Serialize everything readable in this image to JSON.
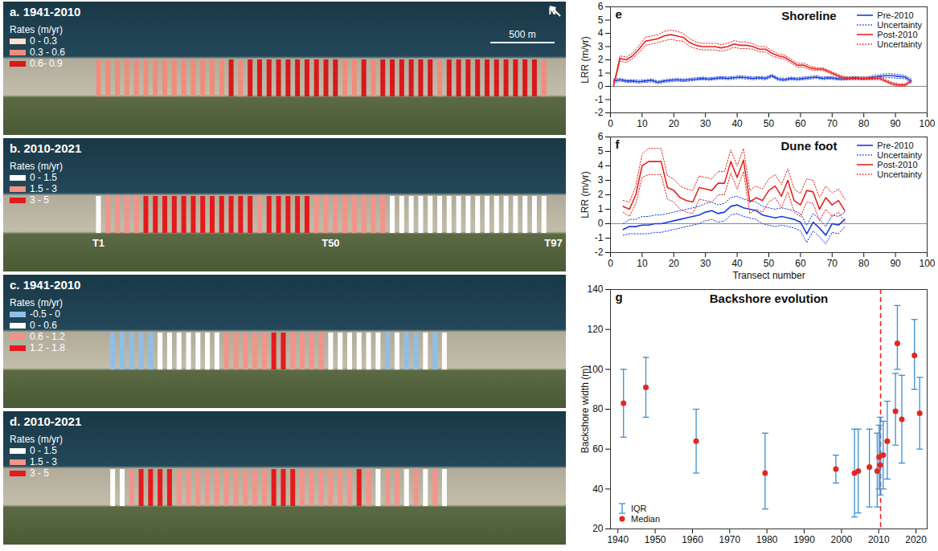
{
  "chart_data": [
    {
      "type": "transect_map",
      "title": "a. 1941-2010",
      "source_chart": "Shoreline",
      "source_series": "Pre-2010",
      "legend": "left",
      "legend_title": "Rates (m/yr)",
      "classes": [
        {
          "min": 0,
          "max": 0.3,
          "label": "0 - 0.3",
          "color": "#fbe3cf"
        },
        {
          "min": 0.3,
          "max": 0.6,
          "label": "0.3 - 0.6",
          "color": "#f08c7c"
        },
        {
          "min": 0.6,
          "max": 0.9,
          "label": "0.6- 0.9",
          "color": "#d7191c"
        }
      ],
      "north_label": "N",
      "scale_label": "500 m"
    },
    {
      "type": "transect_map",
      "title": "b. 2010-2021",
      "source_chart": "Shoreline",
      "source_series": "Post-2010",
      "legend": "left",
      "legend_title": "Rates (m/yr)",
      "classes": [
        {
          "min": 0,
          "max": 1.5,
          "label": "0 - 1.5",
          "color": "#ffffff"
        },
        {
          "min": 1.5,
          "max": 3,
          "label": "1.5 - 3",
          "color": "#f4938a"
        },
        {
          "min": 3,
          "max": 5,
          "label": "3 - 5",
          "color": "#e41a1c"
        }
      ],
      "annotations": [
        {
          "text": "T1",
          "x": 1
        },
        {
          "text": "T50",
          "x": 50
        },
        {
          "text": "T97",
          "x": 97
        }
      ]
    },
    {
      "type": "transect_map",
      "title": "c. 1941-2010",
      "source_chart": "Dune foot",
      "source_series": "Pre-2010",
      "legend": "left",
      "legend_title": "Rates (m/yr)",
      "classes": [
        {
          "min": -0.5,
          "max": 0,
          "label": "-0.5 - 0",
          "color": "#8fbfe8"
        },
        {
          "min": 0,
          "max": 0.6,
          "label": "0 - 0.6",
          "color": "#ffffff"
        },
        {
          "min": 0.6,
          "max": 1.2,
          "label": "0.6 - 1.2",
          "color": "#f4938a"
        },
        {
          "min": 1.2,
          "max": 1.8,
          "label": "1.2 - 1.8",
          "color": "#e41a1c"
        }
      ]
    },
    {
      "type": "transect_map",
      "title": "d. 2010-2021",
      "source_chart": "Dune foot",
      "source_series": "Post-2010",
      "legend": "left",
      "legend_title": "Rates (m/yr)",
      "classes": [
        {
          "min": 0,
          "max": 1.5,
          "label": "0 - 1.5",
          "color": "#ffffff"
        },
        {
          "min": 1.5,
          "max": 3,
          "label": "1.5 - 3",
          "color": "#f4938a"
        },
        {
          "min": 3,
          "max": 5,
          "label": "3 - 5",
          "color": "#e41a1c"
        }
      ]
    },
    {
      "type": "line",
      "panel_label": "e",
      "title": "Shoreline",
      "ylabel": "LRR (m/yr)",
      "legend": "top-right",
      "grid": false,
      "xlim": [
        0,
        100
      ],
      "xticks": [
        0,
        10,
        20,
        30,
        40,
        50,
        60,
        70,
        80,
        90,
        100
      ],
      "ylim": [
        -2,
        6
      ],
      "yticks": [
        -2,
        -1,
        0,
        1,
        2,
        3,
        4,
        5,
        6
      ],
      "reference_line": {
        "y": 0,
        "color": "#888888"
      },
      "x": [
        1,
        3,
        5,
        7,
        9,
        11,
        13,
        15,
        17,
        19,
        21,
        23,
        25,
        27,
        29,
        31,
        33,
        35,
        37,
        39,
        41,
        43,
        45,
        47,
        49,
        51,
        53,
        55,
        57,
        59,
        61,
        63,
        65,
        67,
        69,
        71,
        73,
        75,
        77,
        79,
        81,
        83,
        85,
        87,
        89,
        91,
        93,
        95
      ],
      "series": [
        {
          "name": "Pre-2010",
          "color": "#1a3ee0",
          "line_style": "solid",
          "uncertainty_name": "Uncertainty",
          "values": [
            0.4,
            0.5,
            0.4,
            0.4,
            0.35,
            0.4,
            0.45,
            0.3,
            0.4,
            0.45,
            0.5,
            0.45,
            0.5,
            0.55,
            0.6,
            0.55,
            0.6,
            0.65,
            0.6,
            0.65,
            0.7,
            0.65,
            0.6,
            0.65,
            0.6,
            0.8,
            0.55,
            0.5,
            0.6,
            0.55,
            0.6,
            0.65,
            0.7,
            0.6,
            0.65,
            0.6,
            0.55,
            0.6,
            0.65,
            0.6,
            0.6,
            0.7,
            0.75,
            0.8,
            0.8,
            0.75,
            0.7,
            0.4
          ],
          "uncertainty": [
            0.15,
            0.1,
            0.1,
            0.1,
            0.1,
            0.1,
            0.1,
            0.1,
            0.1,
            0.1,
            0.1,
            0.1,
            0.1,
            0.1,
            0.1,
            0.1,
            0.1,
            0.1,
            0.1,
            0.1,
            0.1,
            0.1,
            0.1,
            0.1,
            0.1,
            0.1,
            0.1,
            0.1,
            0.1,
            0.1,
            0.1,
            0.1,
            0.1,
            0.1,
            0.1,
            0.1,
            0.1,
            0.1,
            0.1,
            0.1,
            0.1,
            0.12,
            0.12,
            0.15,
            0.15,
            0.15,
            0.12,
            0.15
          ]
        },
        {
          "name": "Post-2010",
          "color": "#e8251f",
          "line_style": "solid",
          "uncertainty_name": "Uncertainty",
          "values": [
            0.05,
            2.1,
            2.0,
            2.3,
            2.8,
            3.4,
            3.5,
            3.6,
            3.8,
            3.9,
            3.8,
            3.7,
            3.3,
            3.1,
            3.0,
            3.0,
            3.0,
            2.9,
            3.0,
            3.2,
            3.1,
            3.1,
            3.0,
            2.8,
            2.8,
            2.5,
            2.3,
            2.2,
            1.9,
            1.6,
            1.6,
            1.4,
            1.3,
            1.3,
            1.1,
            0.9,
            0.7,
            0.6,
            0.6,
            0.6,
            0.6,
            0.6,
            0.6,
            0.4,
            0.2,
            0.1,
            0.1,
            0.4
          ],
          "uncertainty": [
            0.05,
            0.2,
            0.2,
            0.2,
            0.25,
            0.3,
            0.3,
            0.3,
            0.35,
            0.35,
            0.35,
            0.3,
            0.3,
            0.25,
            0.25,
            0.25,
            0.25,
            0.25,
            0.25,
            0.25,
            0.25,
            0.25,
            0.2,
            0.2,
            0.2,
            0.2,
            0.15,
            0.15,
            0.15,
            0.15,
            0.15,
            0.15,
            0.1,
            0.1,
            0.1,
            0.1,
            0.1,
            0.1,
            0.1,
            0.1,
            0.1,
            0.1,
            0.1,
            0.1,
            0.1,
            0.1,
            0.1,
            0.1
          ]
        }
      ]
    },
    {
      "type": "line",
      "panel_label": "f",
      "title": "Dune foot",
      "xlabel": "Transect number",
      "ylabel": "LRR (m/yr)",
      "legend": "top-right",
      "grid": false,
      "xlim": [
        0,
        100
      ],
      "xticks": [
        0,
        10,
        20,
        30,
        40,
        50,
        60,
        70,
        80,
        90,
        100
      ],
      "ylim": [
        -2,
        6
      ],
      "yticks": [
        -2,
        -1,
        0,
        1,
        2,
        3,
        4,
        5,
        6
      ],
      "reference_line": {
        "y": 0,
        "color": "#888888"
      },
      "x": [
        4,
        6,
        8,
        10,
        12,
        14,
        16,
        18,
        20,
        22,
        24,
        26,
        28,
        30,
        32,
        34,
        36,
        38,
        40,
        42,
        44,
        46,
        48,
        50,
        52,
        54,
        56,
        58,
        60,
        62,
        64,
        66,
        68,
        70,
        72,
        74
      ],
      "series": [
        {
          "name": "Pre-2010",
          "color": "#1a3ee0",
          "line_style": "solid",
          "uncertainty_name": "Uncertainty",
          "values": [
            -0.4,
            -0.2,
            -0.2,
            -0.1,
            -0.1,
            0.0,
            0.0,
            0.1,
            0.2,
            0.3,
            0.4,
            0.5,
            0.6,
            0.8,
            0.9,
            0.7,
            0.8,
            1.2,
            1.3,
            1.1,
            1.0,
            0.9,
            0.6,
            0.5,
            0.4,
            0.5,
            0.4,
            0.3,
            0.1,
            -0.7,
            0.1,
            -0.3,
            -0.8,
            0.0,
            -0.1,
            0.3
          ],
          "uncertainty": [
            0.4,
            0.5,
            0.5,
            0.6,
            0.6,
            0.6,
            0.6,
            0.6,
            0.6,
            0.6,
            0.6,
            0.6,
            0.6,
            0.6,
            0.6,
            0.6,
            0.6,
            0.6,
            0.6,
            0.6,
            0.6,
            0.6,
            0.6,
            0.6,
            0.6,
            0.6,
            0.6,
            0.6,
            0.6,
            0.6,
            0.6,
            0.6,
            0.6,
            0.6,
            0.6,
            0.5
          ]
        },
        {
          "name": "Post-2010",
          "color": "#e8251f",
          "line_style": "solid",
          "uncertainty_name": "Uncertainty",
          "values": [
            1.2,
            1.0,
            2.0,
            4.0,
            4.3,
            4.3,
            4.3,
            2.5,
            2.3,
            1.8,
            1.6,
            1.5,
            2.5,
            2.4,
            2.3,
            2.8,
            2.8,
            4.3,
            3.2,
            4.4,
            1.5,
            1.8,
            1.6,
            2.3,
            2.6,
            1.9,
            3.0,
            1.6,
            1.3,
            2.3,
            2.2,
            1.0,
            1.8,
            1.3,
            1.6,
            0.9
          ],
          "uncertainty": [
            0.4,
            0.5,
            0.6,
            0.8,
            0.9,
            0.9,
            0.9,
            0.8,
            0.8,
            0.8,
            0.8,
            0.8,
            0.8,
            0.8,
            0.8,
            0.8,
            0.8,
            0.8,
            0.8,
            0.8,
            0.8,
            0.8,
            0.8,
            0.8,
            0.8,
            0.8,
            0.8,
            0.8,
            0.8,
            0.8,
            0.8,
            0.8,
            0.8,
            0.8,
            0.8,
            0.8
          ]
        }
      ]
    },
    {
      "type": "scatter",
      "panel_label": "g",
      "title": "Backshore evolution",
      "ylabel": "Backshore width (m)",
      "legend": "bottom-left",
      "grid": false,
      "xlim": [
        1938,
        2023
      ],
      "xticks": [
        1940,
        1950,
        1960,
        1970,
        1980,
        1990,
        2000,
        2010,
        2020
      ],
      "ylim": [
        20,
        140
      ],
      "yticks": [
        20,
        40,
        60,
        80,
        100,
        120,
        140
      ],
      "reference_line": {
        "x": 2010.5,
        "color": "#e8251f",
        "line_style": "dashed"
      },
      "x": [
        1941.5,
        1947.5,
        1961,
        1979.5,
        1998.5,
        2003.5,
        2004.5,
        2007.5,
        2009.6,
        2010.1,
        2010.4,
        2011.2,
        2012.3,
        2014.5,
        2015,
        2016.2,
        2019.6,
        2021
      ],
      "series": [
        {
          "name": "Median",
          "color": "#e8251f",
          "marker": "circle",
          "values": [
            83,
            91,
            64,
            48,
            50,
            48,
            49,
            51,
            49,
            56,
            52,
            57,
            64,
            79,
            113,
            75,
            107,
            78
          ],
          "error_name": "IQR",
          "error_color": "#3b8fd4",
          "iqr_low": [
            66,
            76,
            48,
            30,
            43,
            26,
            28,
            31,
            31,
            40,
            37,
            40,
            45,
            62,
            100,
            53,
            90,
            60
          ],
          "iqr_high": [
            100,
            106,
            80,
            68,
            57,
            70,
            70,
            70,
            68,
            72,
            76,
            74,
            84,
            98,
            132,
            97,
            125,
            96
          ]
        }
      ]
    }
  ]
}
